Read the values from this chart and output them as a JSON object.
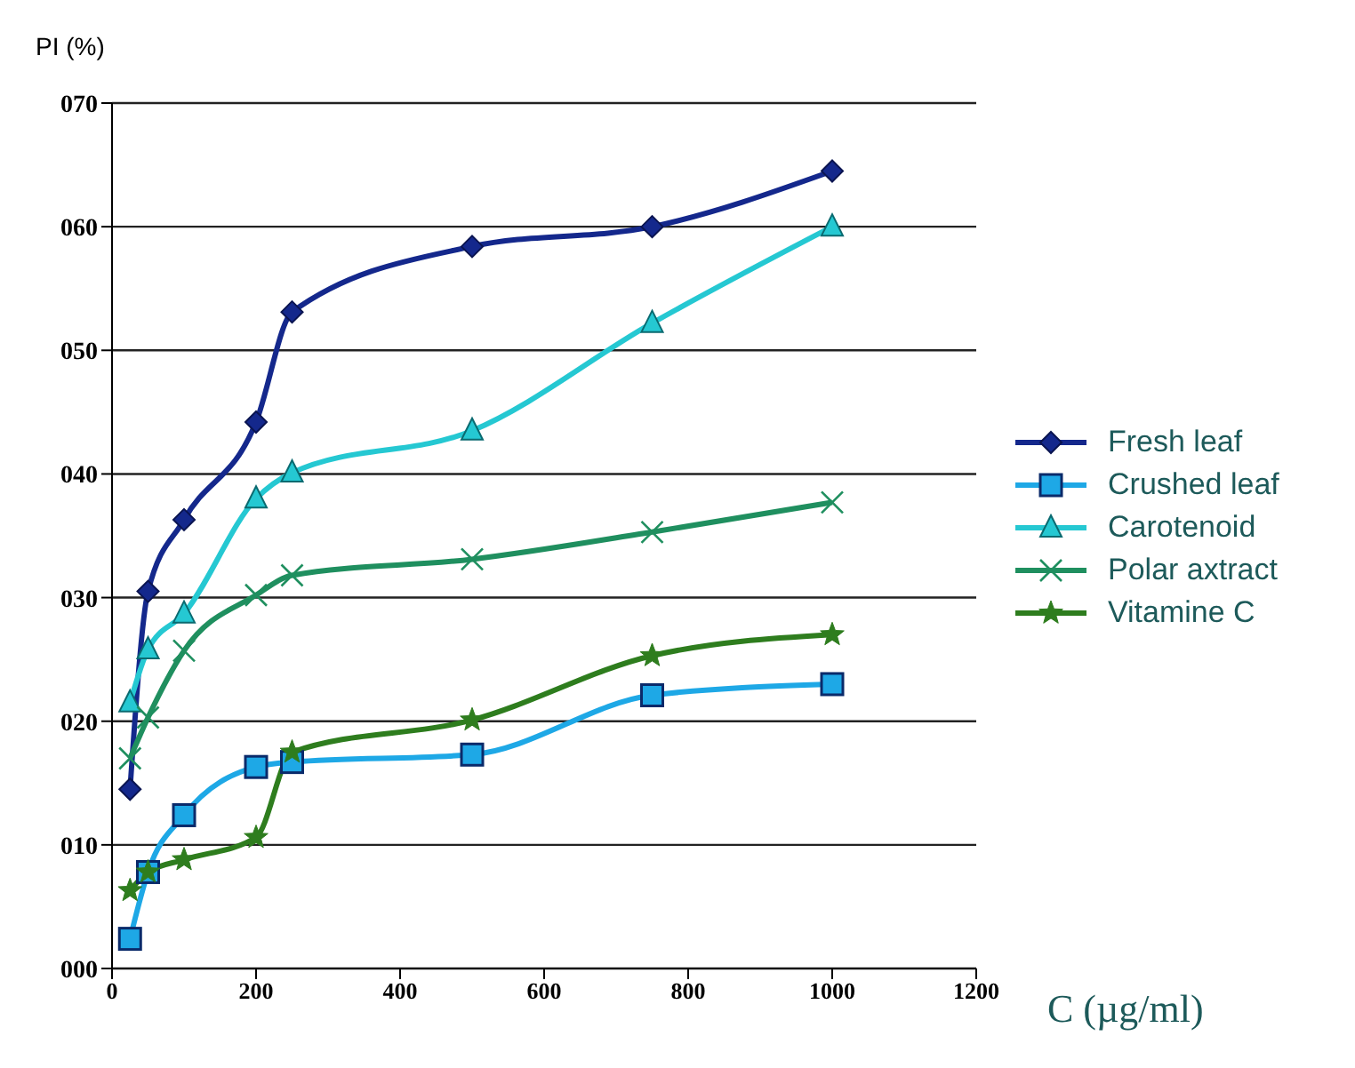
{
  "chart_data": {
    "type": "line",
    "ylabel": "PI (%)",
    "xlabel": "C (µg/ml)",
    "x": [
      25,
      50,
      100,
      200,
      250,
      500,
      750,
      1000
    ],
    "series": [
      {
        "name": "Fresh leaf",
        "color": "#14288c",
        "marker": "diamond",
        "values": [
          14.5,
          30.5,
          36.3,
          44.2,
          53.1,
          58.4,
          60.0,
          64.5
        ]
      },
      {
        "name": "Crushed leaf",
        "color": "#1ea8e6",
        "marker": "square",
        "values": [
          2.4,
          7.8,
          12.4,
          16.3,
          16.7,
          17.3,
          22.1,
          23.0
        ]
      },
      {
        "name": "Carotenoid",
        "color": "#25c8d2",
        "marker": "triangle",
        "values": [
          21.5,
          25.8,
          28.7,
          38.0,
          40.1,
          43.5,
          52.2,
          60.0
        ]
      },
      {
        "name": "Polar axtract",
        "color": "#1f8f5f",
        "marker": "cross",
        "values": [
          17.0,
          20.3,
          25.7,
          30.2,
          31.8,
          33.1,
          35.3,
          37.7
        ]
      },
      {
        "name": "Vitamine C",
        "color": "#2e7d1e",
        "marker": "star",
        "values": [
          6.3,
          7.8,
          8.8,
          10.6,
          17.5,
          20.1,
          25.3,
          27.0
        ]
      }
    ],
    "xlim": [
      0,
      1200
    ],
    "xticks": [
      0,
      200,
      400,
      600,
      800,
      1000,
      1200
    ],
    "ylim": [
      0,
      70
    ],
    "yticks": [
      {
        "value": 0,
        "label": "000"
      },
      {
        "value": 10,
        "label": "010"
      },
      {
        "value": 20,
        "label": "020"
      },
      {
        "value": 30,
        "label": "030"
      },
      {
        "value": 40,
        "label": "040"
      },
      {
        "value": 50,
        "label": "050"
      },
      {
        "value": 60,
        "label": "060"
      },
      {
        "value": 70,
        "label": "070"
      }
    ],
    "grid": "y",
    "legend": "right"
  }
}
